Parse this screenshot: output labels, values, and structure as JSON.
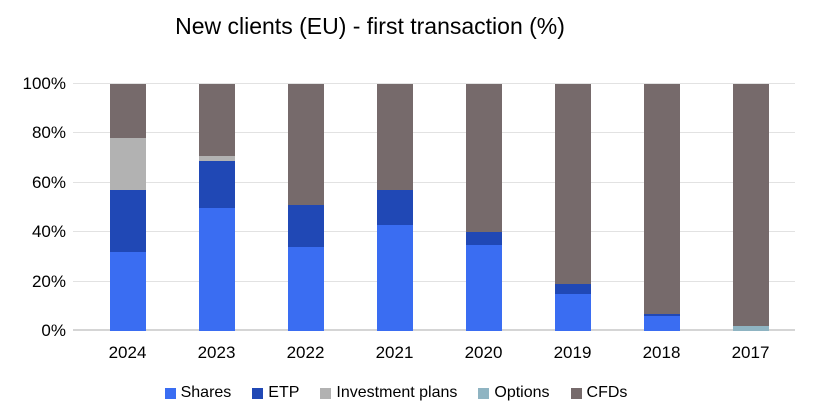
{
  "chart_data": {
    "type": "bar",
    "stacked": true,
    "title": "New clients (EU) - first transaction (%)",
    "xlabel": "",
    "ylabel": "",
    "categories": [
      "2024",
      "2023",
      "2022",
      "2021",
      "2020",
      "2019",
      "2018",
      "2017"
    ],
    "series": [
      {
        "name": "Shares",
        "color": "#3a6df2",
        "values": [
          32,
          50,
          34,
          43,
          35,
          15,
          6,
          0
        ]
      },
      {
        "name": "ETP",
        "color": "#2048b5",
        "values": [
          25,
          19,
          17,
          14,
          5,
          4,
          1,
          0
        ]
      },
      {
        "name": "Investment plans",
        "color": "#b2b2b2",
        "values": [
          21,
          2,
          0,
          0,
          0,
          0,
          0,
          0
        ]
      },
      {
        "name": "Options",
        "color": "#8fb4c2",
        "values": [
          0,
          0,
          0,
          0,
          0,
          0,
          0,
          2
        ]
      },
      {
        "name": "CFDs",
        "color": "#766a6b",
        "values": [
          22,
          29,
          49,
          43,
          60,
          81,
          93,
          98
        ]
      }
    ],
    "ylim": [
      0,
      100
    ],
    "yticks": [
      "0%",
      "20%",
      "40%",
      "60%",
      "80%",
      "100%"
    ],
    "grid": true,
    "legend_position": "bottom",
    "gridline_color": "#e2e2e2",
    "axis_line_color": "#d5d5d5"
  }
}
